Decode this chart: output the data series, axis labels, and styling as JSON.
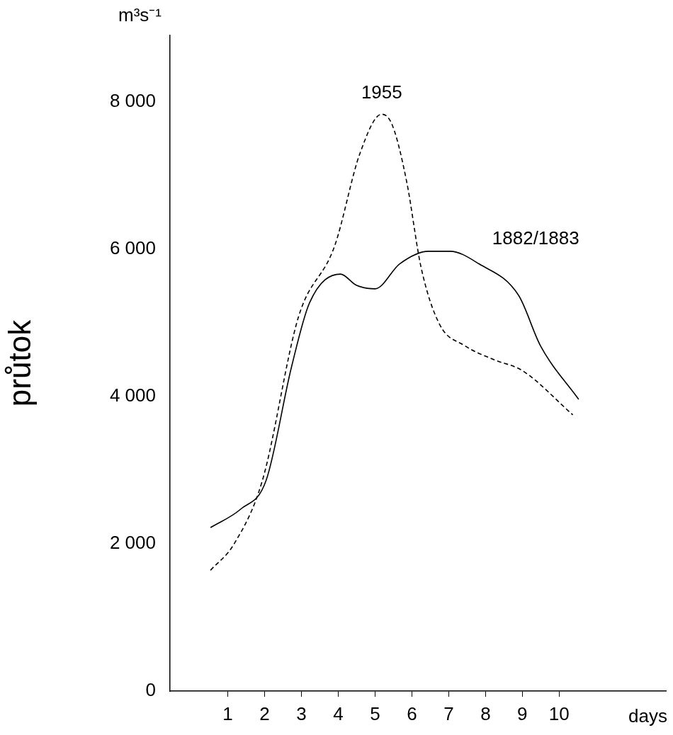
{
  "chart_data": {
    "type": "line",
    "ylabel": "průtok",
    "xlabel": "days",
    "annotations": [
      "m³s⁻¹"
    ],
    "xlim": [
      -0.57,
      12.9
    ],
    "xticks": [
      1,
      2,
      3,
      4,
      5,
      6,
      7,
      8,
      9,
      10
    ],
    "ylim": [
      0,
      8900
    ],
    "yticks": [
      0,
      {
        "value": 2000,
        "label": "2 000"
      },
      {
        "value": 4000,
        "label": "4 000"
      },
      {
        "value": 6000,
        "label": "6 000"
      },
      {
        "value": 8000,
        "label": "8 000"
      }
    ],
    "grid": false,
    "legend": false,
    "marker": "none",
    "series": [
      {
        "name": "1955",
        "color": "#000000",
        "line_style": "dashed",
        "x": [
          0.53,
          1.16,
          1.94,
          2.92,
          3.9,
          4.59,
          5.18,
          5.47,
          5.86,
          6.25,
          6.75,
          7.43,
          8.22,
          9.0,
          10.37
        ],
        "values": [
          1640,
          1990,
          2860,
          5080,
          6040,
          7300,
          7830,
          7680,
          6910,
          5750,
          4980,
          4690,
          4500,
          4350,
          3750
        ]
      },
      {
        "name": "1882/1883",
        "color": "#000000",
        "line_style": "solid",
        "x": [
          0.53,
          1.35,
          2.04,
          2.73,
          3.22,
          4.06,
          4.49,
          5.0,
          5.67,
          6.45,
          7.04,
          7.82,
          8.9,
          9.49,
          10.53
        ],
        "values": [
          2220,
          2470,
          2860,
          4400,
          5270,
          5660,
          5510,
          5460,
          5800,
          5970,
          5970,
          5800,
          5370,
          4690,
          3960
        ]
      }
    ]
  }
}
